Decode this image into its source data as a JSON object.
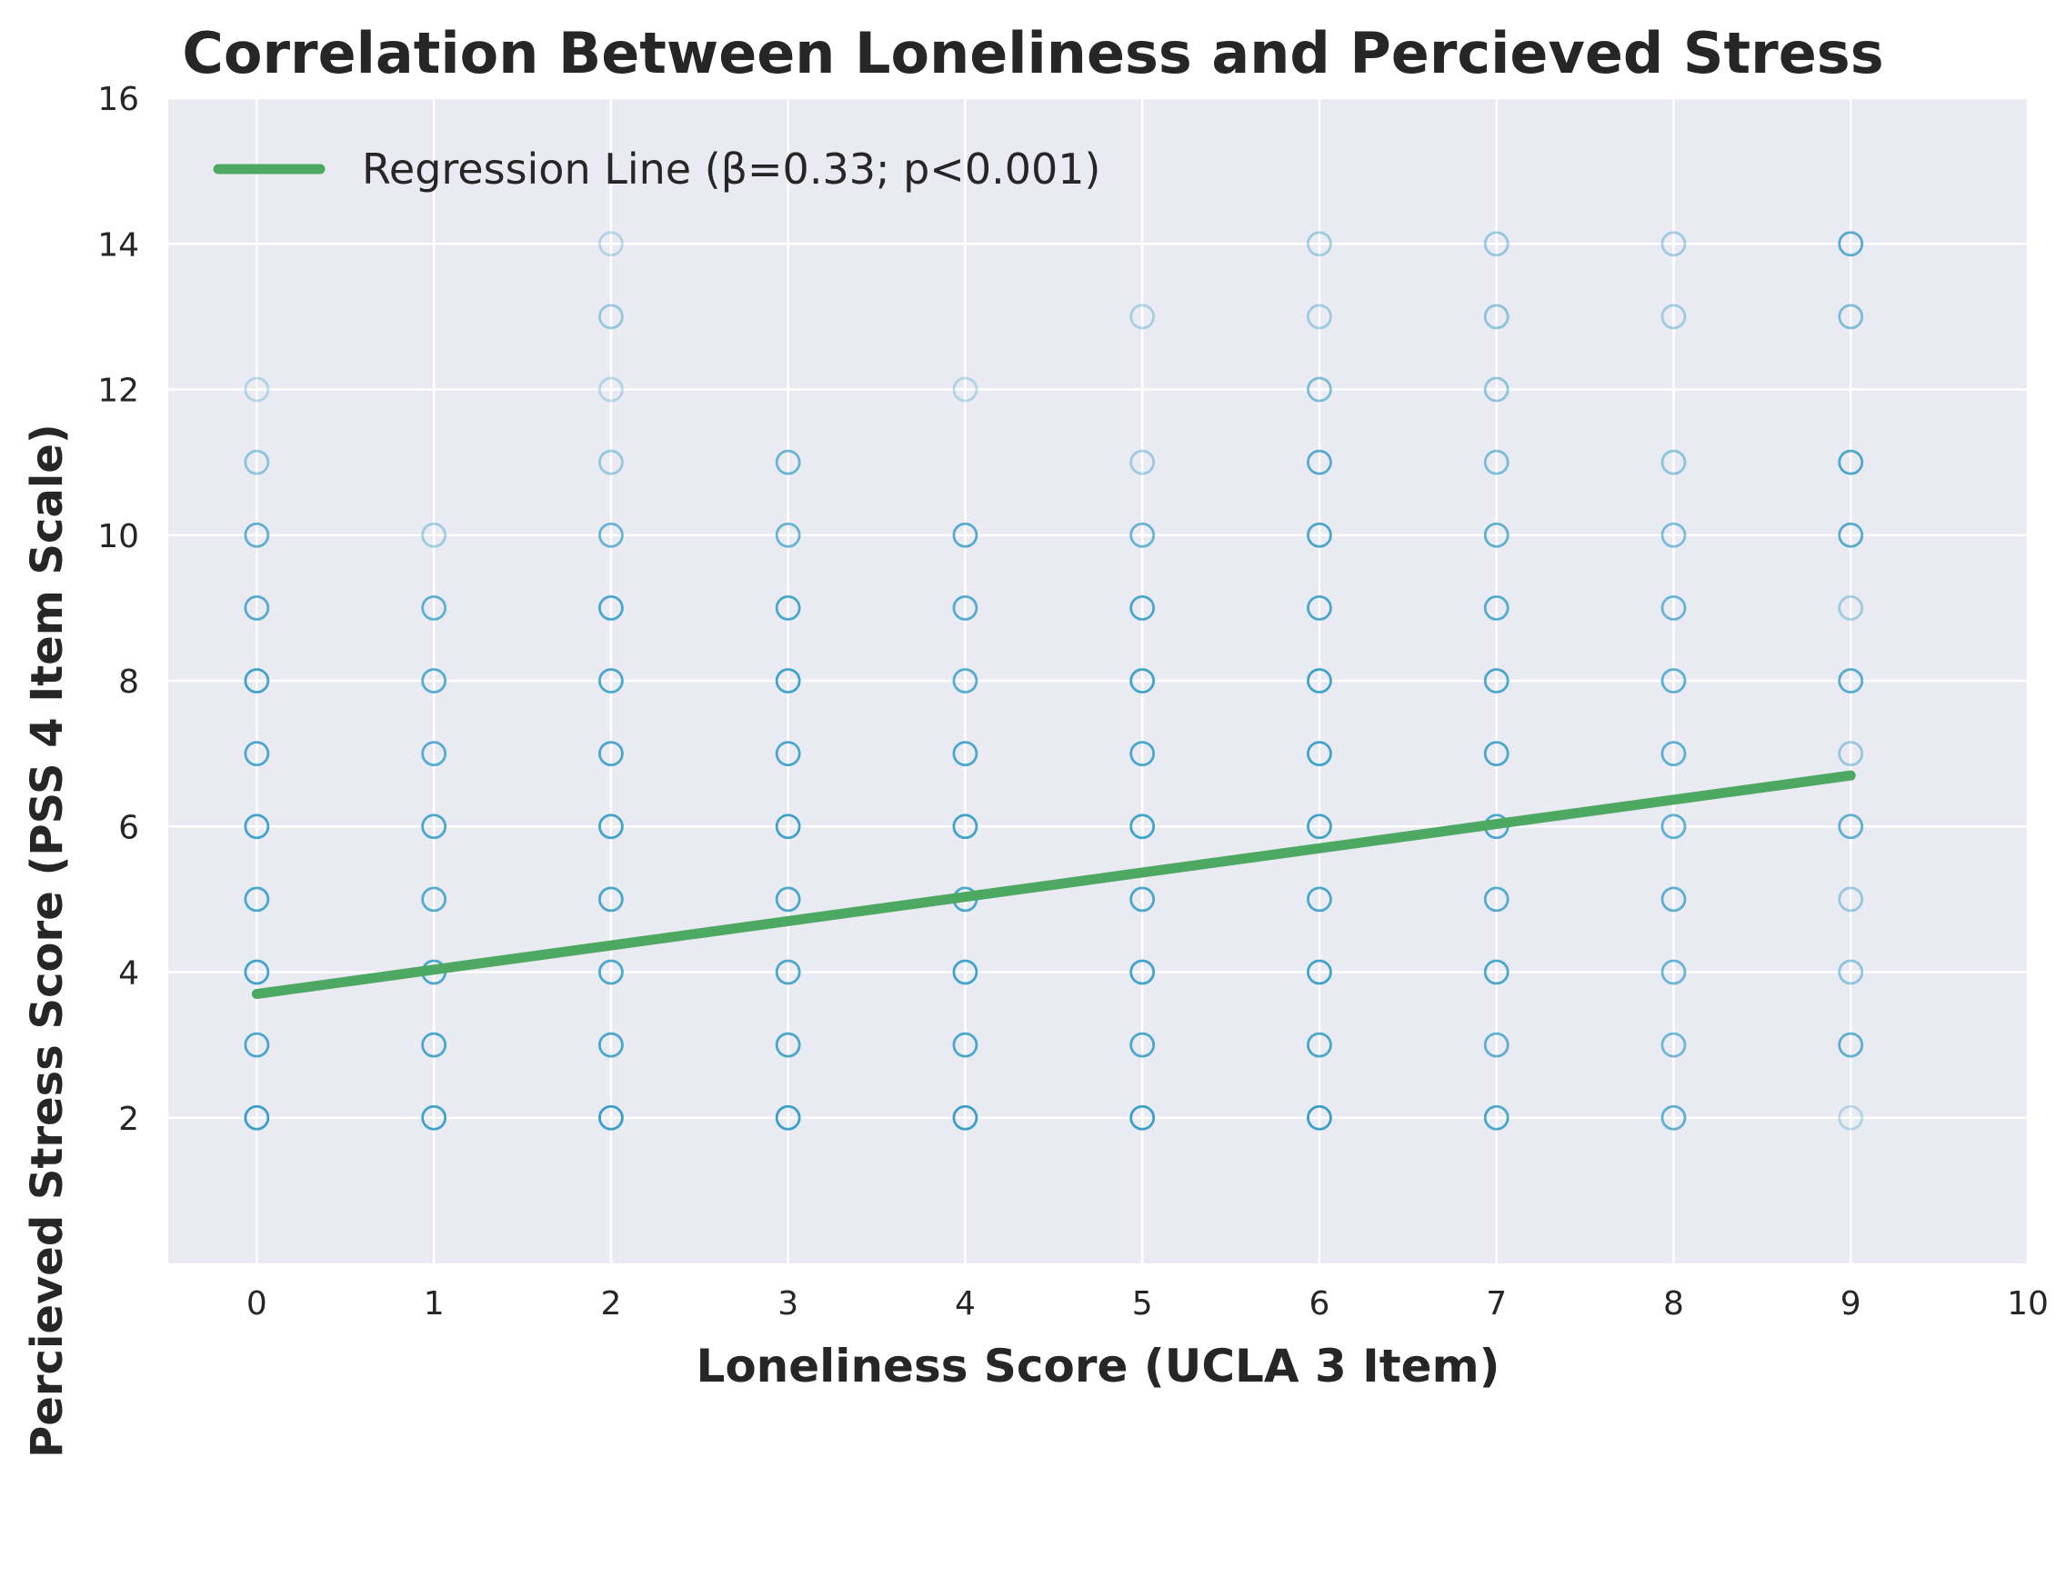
{
  "chart_data": {
    "type": "scatter",
    "title": "Correlation Between Loneliness and Percieved Stress",
    "xlabel": "Loneliness Score (UCLA 3 Item)",
    "ylabel": "Percieved Stress Score (PSS 4 Item Scale)",
    "xlim": [
      -0.5,
      10
    ],
    "ylim": [
      0,
      16
    ],
    "xticks": [
      0,
      1,
      2,
      3,
      4,
      5,
      6,
      7,
      8,
      9,
      10
    ],
    "yticks": [
      2,
      4,
      6,
      8,
      10,
      12,
      14,
      16
    ],
    "grid": true,
    "background_color": "#EAEAF2",
    "grid_color": "#FFFFFF",
    "point_color": "#2E9BC6",
    "line_color": "#4DA862",
    "legend_position": "top-left",
    "points": [
      [
        0,
        2,
        0.95
      ],
      [
        0,
        3,
        0.85
      ],
      [
        0,
        4,
        0.9
      ],
      [
        0,
        5,
        0.85
      ],
      [
        0,
        6,
        0.9
      ],
      [
        0,
        7,
        0.85
      ],
      [
        0,
        8,
        0.9
      ],
      [
        0,
        9,
        0.8
      ],
      [
        0,
        10,
        0.75
      ],
      [
        0,
        11,
        0.5
      ],
      [
        0,
        12,
        0.3
      ],
      [
        1,
        2,
        0.9
      ],
      [
        1,
        3,
        0.85
      ],
      [
        1,
        4,
        0.85
      ],
      [
        1,
        5,
        0.8
      ],
      [
        1,
        6,
        0.85
      ],
      [
        1,
        7,
        0.8
      ],
      [
        1,
        8,
        0.8
      ],
      [
        1,
        9,
        0.75
      ],
      [
        1,
        10,
        0.4
      ],
      [
        2,
        2,
        0.95
      ],
      [
        2,
        3,
        0.85
      ],
      [
        2,
        4,
        0.85
      ],
      [
        2,
        5,
        0.85
      ],
      [
        2,
        6,
        0.9
      ],
      [
        2,
        7,
        0.85
      ],
      [
        2,
        8,
        0.85
      ],
      [
        2,
        9,
        0.85
      ],
      [
        2,
        10,
        0.7
      ],
      [
        2,
        11,
        0.45
      ],
      [
        2,
        12,
        0.3
      ],
      [
        2,
        13,
        0.45
      ],
      [
        2,
        14,
        0.3
      ],
      [
        3,
        2,
        0.95
      ],
      [
        3,
        3,
        0.85
      ],
      [
        3,
        4,
        0.85
      ],
      [
        3,
        5,
        0.85
      ],
      [
        3,
        6,
        0.9
      ],
      [
        3,
        7,
        0.85
      ],
      [
        3,
        8,
        0.9
      ],
      [
        3,
        9,
        0.85
      ],
      [
        3,
        10,
        0.7
      ],
      [
        3,
        11,
        0.7
      ],
      [
        4,
        2,
        0.95
      ],
      [
        4,
        3,
        0.85
      ],
      [
        4,
        4,
        0.9
      ],
      [
        4,
        5,
        0.85
      ],
      [
        4,
        6,
        0.9
      ],
      [
        4,
        7,
        0.85
      ],
      [
        4,
        8,
        0.8
      ],
      [
        4,
        9,
        0.8
      ],
      [
        4,
        10,
        0.8
      ],
      [
        4,
        12,
        0.3
      ],
      [
        5,
        2,
        0.95
      ],
      [
        5,
        3,
        0.85
      ],
      [
        5,
        4,
        0.9
      ],
      [
        5,
        5,
        0.85
      ],
      [
        5,
        6,
        0.9
      ],
      [
        5,
        7,
        0.85
      ],
      [
        5,
        8,
        0.9
      ],
      [
        5,
        9,
        0.85
      ],
      [
        5,
        10,
        0.7
      ],
      [
        5,
        11,
        0.4
      ],
      [
        5,
        13,
        0.35
      ],
      [
        6,
        2,
        0.95
      ],
      [
        6,
        3,
        0.85
      ],
      [
        6,
        4,
        0.9
      ],
      [
        6,
        5,
        0.85
      ],
      [
        6,
        6,
        0.9
      ],
      [
        6,
        7,
        0.9
      ],
      [
        6,
        8,
        0.9
      ],
      [
        6,
        9,
        0.85
      ],
      [
        6,
        10,
        0.85
      ],
      [
        6,
        11,
        0.8
      ],
      [
        6,
        12,
        0.6
      ],
      [
        6,
        13,
        0.4
      ],
      [
        6,
        14,
        0.4
      ],
      [
        7,
        2,
        0.85
      ],
      [
        7,
        3,
        0.75
      ],
      [
        7,
        4,
        0.85
      ],
      [
        7,
        5,
        0.8
      ],
      [
        7,
        6,
        0.85
      ],
      [
        7,
        7,
        0.85
      ],
      [
        7,
        8,
        0.85
      ],
      [
        7,
        9,
        0.8
      ],
      [
        7,
        10,
        0.75
      ],
      [
        7,
        11,
        0.6
      ],
      [
        7,
        12,
        0.5
      ],
      [
        7,
        13,
        0.5
      ],
      [
        7,
        14,
        0.45
      ],
      [
        8,
        2,
        0.75
      ],
      [
        8,
        3,
        0.65
      ],
      [
        8,
        4,
        0.7
      ],
      [
        8,
        5,
        0.75
      ],
      [
        8,
        6,
        0.75
      ],
      [
        8,
        7,
        0.75
      ],
      [
        8,
        8,
        0.75
      ],
      [
        8,
        9,
        0.7
      ],
      [
        8,
        10,
        0.6
      ],
      [
        8,
        11,
        0.5
      ],
      [
        8,
        13,
        0.4
      ],
      [
        8,
        14,
        0.4
      ],
      [
        9,
        2,
        0.3
      ],
      [
        9,
        3,
        0.75
      ],
      [
        9,
        4,
        0.5
      ],
      [
        9,
        5,
        0.45
      ],
      [
        9,
        6,
        0.75
      ],
      [
        9,
        7,
        0.45
      ],
      [
        9,
        8,
        0.8
      ],
      [
        9,
        9,
        0.4
      ],
      [
        9,
        10,
        0.8
      ],
      [
        9,
        11,
        0.85
      ],
      [
        9,
        13,
        0.6
      ],
      [
        9,
        14,
        0.8
      ]
    ],
    "regression": {
      "x_start": 0,
      "x_end": 9,
      "y_start": 3.7,
      "y_end": 6.7
    },
    "legend": [
      {
        "label": "Regression Line (β=0.33; p<0.001)",
        "marker": "line"
      }
    ]
  }
}
